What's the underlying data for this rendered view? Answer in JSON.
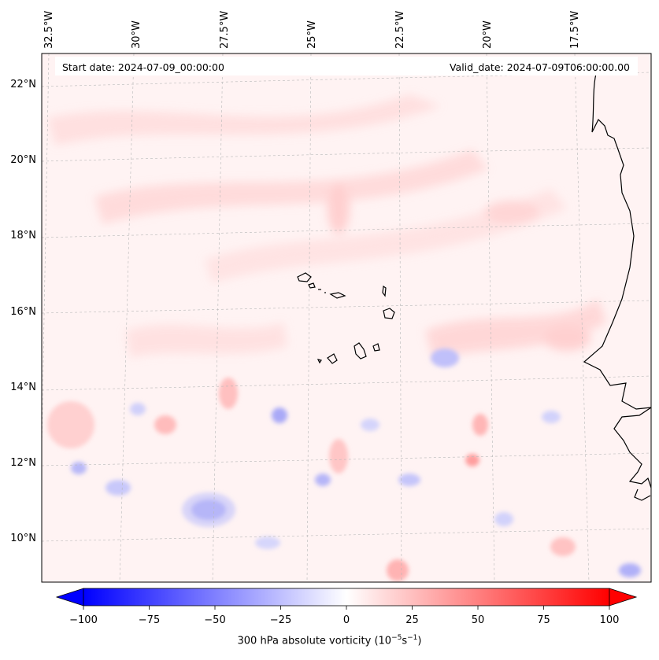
{
  "header": {
    "start_date": "Start date: 2024-07-09_00:00:00",
    "valid_date": "Valid_date: 2024-07-09T06:00:00.00"
  },
  "map": {
    "region": "Cape Verde / West African coast",
    "lon_labels": [
      "32.5°W",
      "30°W",
      "27.5°W",
      "25°W",
      "22.5°W",
      "20°W",
      "17.5°W"
    ],
    "lat_labels": [
      "22°N",
      "20°N",
      "18°N",
      "16°N",
      "14°N",
      "12°N",
      "10°N"
    ],
    "gridlines": true,
    "field": "300 hPa absolute vorticity",
    "dominant_sign": "positive (weak pink) in north, mixed weak positive/negative in south"
  },
  "colorbar": {
    "min": -100,
    "max": 100,
    "ticks": [
      "−100",
      "−75",
      "−50",
      "−25",
      "0",
      "25",
      "50",
      "75",
      "100"
    ],
    "label_main": "300 hPa absolute vorticity (10",
    "label_exp1": "−5",
    "label_mid": "s",
    "label_exp2": "−1",
    "label_end": ")",
    "colormap": "bwr",
    "extend": "both",
    "colors": {
      "negative": "#0000ff",
      "zero": "#ffffff",
      "positive": "#ff0000"
    }
  },
  "colors": {
    "coastline": "#000000",
    "gridline": "#b0b0b0",
    "background_positive_tint": "#fff0f0"
  }
}
